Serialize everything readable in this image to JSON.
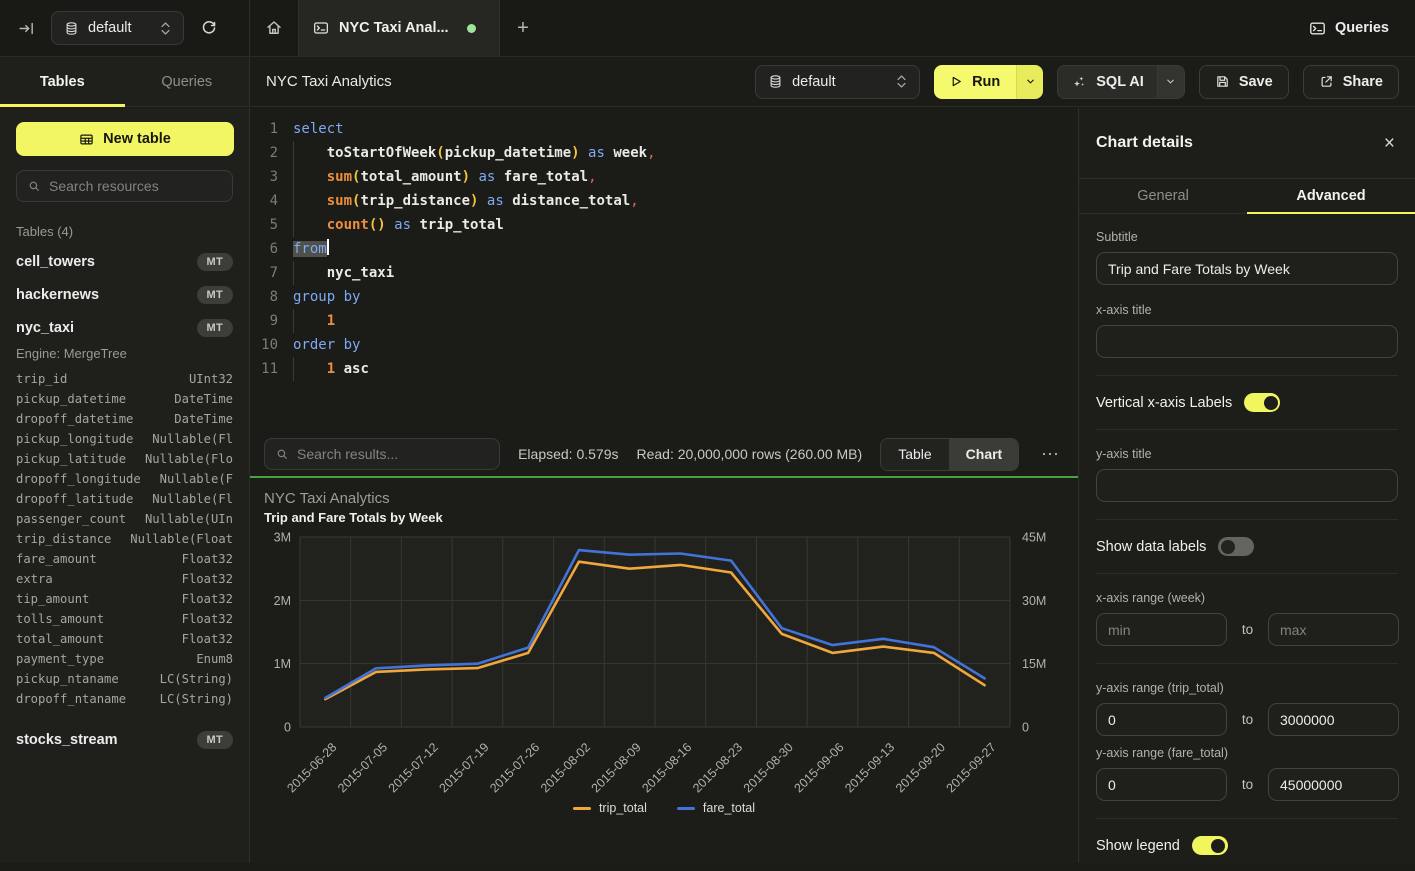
{
  "header": {
    "db_selector": "default",
    "tab_title": "NYC Taxi Anal...",
    "new_tab": "+",
    "queries_label": "Queries"
  },
  "sidebar": {
    "tab_tables": "Tables",
    "tab_queries": "Queries",
    "new_table_label": "New table",
    "search_placeholder": "Search resources",
    "section_label": "Tables (4)",
    "tables": [
      {
        "name": "cell_towers",
        "badge": "MT"
      },
      {
        "name": "hackernews",
        "badge": "MT"
      },
      {
        "name": "nyc_taxi",
        "badge": "MT"
      },
      {
        "name": "stocks_stream",
        "badge": "MT"
      }
    ],
    "engine_line": "Engine: MergeTree",
    "columns": [
      {
        "name": "trip_id",
        "type": "UInt32"
      },
      {
        "name": "pickup_datetime",
        "type": "DateTime"
      },
      {
        "name": "dropoff_datetime",
        "type": "DateTime"
      },
      {
        "name": "pickup_longitude",
        "type": "Nullable(Fl"
      },
      {
        "name": "pickup_latitude",
        "type": "Nullable(Flo"
      },
      {
        "name": "dropoff_longitude",
        "type": "Nullable(F"
      },
      {
        "name": "dropoff_latitude",
        "type": "Nullable(Fl"
      },
      {
        "name": "passenger_count",
        "type": "Nullable(UIn"
      },
      {
        "name": "trip_distance",
        "type": "Nullable(Float"
      },
      {
        "name": "fare_amount",
        "type": "Float32"
      },
      {
        "name": "extra",
        "type": "Float32"
      },
      {
        "name": "tip_amount",
        "type": "Float32"
      },
      {
        "name": "tolls_amount",
        "type": "Float32"
      },
      {
        "name": "total_amount",
        "type": "Float32"
      },
      {
        "name": "payment_type",
        "type": "Enum8"
      },
      {
        "name": "pickup_ntaname",
        "type": "LC(String)"
      },
      {
        "name": "dropoff_ntaname",
        "type": "LC(String)"
      }
    ]
  },
  "toolbar": {
    "query_title": "NYC Taxi Analytics",
    "db_selector": "default",
    "run_label": "Run",
    "sql_ai_label": "SQL AI",
    "save_label": "Save",
    "share_label": "Share"
  },
  "editor": {
    "lines": [
      {
        "n": "1",
        "indent": false,
        "tokens": [
          [
            "k",
            "select"
          ]
        ]
      },
      {
        "n": "2",
        "indent": true,
        "tokens": [
          [
            "w",
            "    "
          ],
          [
            "i",
            "toStartOfWeek"
          ],
          [
            "p",
            "("
          ],
          [
            "i",
            "pickup_datetime"
          ],
          [
            "p",
            ")"
          ],
          [
            "w",
            " "
          ],
          [
            "k",
            "as"
          ],
          [
            "w",
            " "
          ],
          [
            "i",
            "week"
          ],
          [
            "c",
            ","
          ]
        ]
      },
      {
        "n": "3",
        "indent": true,
        "tokens": [
          [
            "w",
            "    "
          ],
          [
            "f",
            "sum"
          ],
          [
            "p",
            "("
          ],
          [
            "i",
            "total_amount"
          ],
          [
            "p",
            ")"
          ],
          [
            "w",
            " "
          ],
          [
            "k",
            "as"
          ],
          [
            "w",
            " "
          ],
          [
            "i",
            "fare_total"
          ],
          [
            "c",
            ","
          ]
        ]
      },
      {
        "n": "4",
        "indent": true,
        "tokens": [
          [
            "w",
            "    "
          ],
          [
            "f",
            "sum"
          ],
          [
            "p",
            "("
          ],
          [
            "i",
            "trip_distance"
          ],
          [
            "p",
            ")"
          ],
          [
            "w",
            " "
          ],
          [
            "k",
            "as"
          ],
          [
            "w",
            " "
          ],
          [
            "i",
            "distance_total"
          ],
          [
            "c",
            ","
          ]
        ]
      },
      {
        "n": "5",
        "indent": true,
        "tokens": [
          [
            "w",
            "    "
          ],
          [
            "f",
            "count"
          ],
          [
            "p",
            "()"
          ],
          [
            "w",
            " "
          ],
          [
            "k",
            "as"
          ],
          [
            "w",
            " "
          ],
          [
            "i",
            "trip_total"
          ]
        ]
      },
      {
        "n": "6",
        "indent": false,
        "tokens": [
          [
            "sel",
            "from"
          ],
          [
            "cursor",
            ""
          ]
        ]
      },
      {
        "n": "7",
        "indent": true,
        "tokens": [
          [
            "w",
            "    "
          ],
          [
            "i",
            "nyc_taxi"
          ]
        ]
      },
      {
        "n": "8",
        "indent": false,
        "tokens": [
          [
            "k",
            "group by"
          ]
        ]
      },
      {
        "n": "9",
        "indent": true,
        "tokens": [
          [
            "w",
            "    "
          ],
          [
            "n",
            "1"
          ]
        ]
      },
      {
        "n": "10",
        "indent": false,
        "tokens": [
          [
            "k",
            "order by"
          ]
        ]
      },
      {
        "n": "11",
        "indent": true,
        "tokens": [
          [
            "w",
            "    "
          ],
          [
            "n",
            "1"
          ],
          [
            "w",
            " "
          ],
          [
            "i",
            "asc"
          ]
        ]
      }
    ]
  },
  "results": {
    "search_placeholder": "Search results...",
    "elapsed": "Elapsed: 0.579s",
    "read": "Read: 20,000,000 rows (260.00 MB)",
    "view_table": "Table",
    "view_chart": "Chart",
    "more": "⋯"
  },
  "chart_data": {
    "type": "line",
    "title": "NYC Taxi Analytics",
    "subtitle": "Trip and Fare Totals by Week",
    "categories": [
      "2015-06-28",
      "2015-07-05",
      "2015-07-12",
      "2015-07-19",
      "2015-07-26",
      "2015-08-02",
      "2015-08-09",
      "2015-08-16",
      "2015-08-23",
      "2015-08-30",
      "2015-09-06",
      "2015-09-13",
      "2015-09-20",
      "2015-09-27"
    ],
    "series": [
      {
        "name": "trip_total",
        "axis": "left",
        "color": "#F0A73C",
        "values": [
          440000,
          870000,
          910000,
          930000,
          1170000,
          2610000,
          2500000,
          2560000,
          2440000,
          1470000,
          1170000,
          1270000,
          1170000,
          660000
        ]
      },
      {
        "name": "fare_total",
        "axis": "right",
        "color": "#4273D8",
        "values": [
          6900000,
          13900000,
          14600000,
          15000000,
          18800000,
          41900000,
          40800000,
          41100000,
          39400000,
          23400000,
          19400000,
          20900000,
          18900000,
          11500000
        ]
      }
    ],
    "left_axis": {
      "min": 0,
      "max": 3000000,
      "ticks": [
        "0",
        "1M",
        "2M",
        "3M"
      ]
    },
    "right_axis": {
      "min": 0,
      "max": 45000000,
      "ticks": [
        "0",
        "15M",
        "30M",
        "45M"
      ]
    },
    "grid": true,
    "x_labels_rotated": true,
    "legend_position": "bottom"
  },
  "panel": {
    "title": "Chart details",
    "close": "×",
    "tab_general": "General",
    "tab_advanced": "Advanced",
    "subtitle_label": "Subtitle",
    "subtitle_value": "Trip and Fare Totals by Week",
    "xaxis_title_label": "x-axis title",
    "xaxis_title_value": "",
    "vertical_labels_label": "Vertical x-axis Labels",
    "yaxis_title_label": "y-axis title",
    "yaxis_title_value": "",
    "show_data_labels_label": "Show data labels",
    "xrange_label": "x-axis range (week)",
    "min_placeholder": "min",
    "max_placeholder": "max",
    "to_label": "to",
    "yrange_trip_label": "y-axis range (trip_total)",
    "trip_min": "0",
    "trip_max": "3000000",
    "yrange_fare_label": "y-axis range (fare_total)",
    "fare_min": "0",
    "fare_max": "45000000",
    "show_legend_label": "Show legend"
  }
}
